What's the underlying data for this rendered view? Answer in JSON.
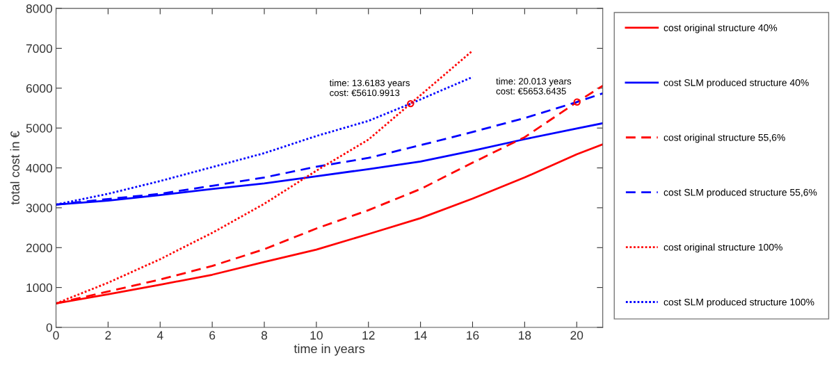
{
  "chart_data": {
    "type": "line",
    "xlabel": "time in years",
    "ylabel": "total cost in €",
    "xlim": [
      0,
      21
    ],
    "xticks": [
      0,
      2,
      4,
      6,
      8,
      10,
      12,
      14,
      16,
      18,
      20
    ],
    "ylim": [
      0,
      8000
    ],
    "yticks": [
      0,
      1000,
      2000,
      3000,
      4000,
      5000,
      6000,
      7000,
      8000
    ],
    "grid": false,
    "legend": "right",
    "series": [
      {
        "name": "cost original structure 40%",
        "color": "#ff0000",
        "line_style": "solid",
        "x": [
          0,
          2,
          4,
          6,
          8,
          10,
          12,
          14,
          16,
          18,
          20,
          21
        ],
        "values": [
          600,
          830,
          1070,
          1320,
          1640,
          1950,
          2340,
          2740,
          3230,
          3760,
          4340,
          4590
        ]
      },
      {
        "name": "cost SLM produced structure 40%",
        "color": "#0000ff",
        "line_style": "solid",
        "x": [
          0,
          2,
          4,
          6,
          8,
          10,
          12,
          14,
          16,
          18,
          20,
          21
        ],
        "values": [
          3080,
          3180,
          3320,
          3470,
          3610,
          3790,
          3970,
          4160,
          4430,
          4720,
          4990,
          5120
        ]
      },
      {
        "name": "cost original structure 55,6%",
        "color": "#ff0000",
        "line_style": "dashed",
        "x": [
          0,
          2,
          4,
          6,
          8,
          10,
          12,
          14,
          16,
          18,
          20.013,
          21
        ],
        "values": [
          600,
          900,
          1200,
          1540,
          1960,
          2480,
          2940,
          3470,
          4130,
          4770,
          5653.6435,
          6060
        ]
      },
      {
        "name": "cost SLM produced structure 55,6%",
        "color": "#0000ff",
        "line_style": "dashed",
        "x": [
          0,
          2,
          4,
          6,
          8,
          10,
          12,
          14,
          16,
          18,
          20.013,
          21
        ],
        "values": [
          3080,
          3220,
          3350,
          3550,
          3760,
          4030,
          4250,
          4570,
          4900,
          5250,
          5653.6435,
          5870
        ]
      },
      {
        "name": "cost original structure 100%",
        "color": "#ff0000",
        "line_style": "dotted",
        "x": [
          0,
          2,
          4,
          6,
          8,
          10,
          12,
          13.6183,
          16
        ],
        "values": [
          600,
          1120,
          1710,
          2370,
          3100,
          3930,
          4710,
          5610.9913,
          6940
        ]
      },
      {
        "name": "cost SLM produced structure 100%",
        "color": "#0000ff",
        "line_style": "dotted",
        "x": [
          0,
          2,
          4,
          6,
          8,
          10,
          12,
          13.6183,
          16
        ],
        "values": [
          3080,
          3350,
          3670,
          4020,
          4370,
          4800,
          5180,
          5610.9913,
          6280
        ]
      }
    ],
    "annotations": [
      {
        "text": "time: 13.6183 years\ncost: €5610.9913",
        "x": 13.6183,
        "y": 5610.9913
      },
      {
        "text": "time: 20.013 years\ncost: €5653.6435",
        "x": 20.013,
        "y": 5653.6435
      }
    ]
  }
}
